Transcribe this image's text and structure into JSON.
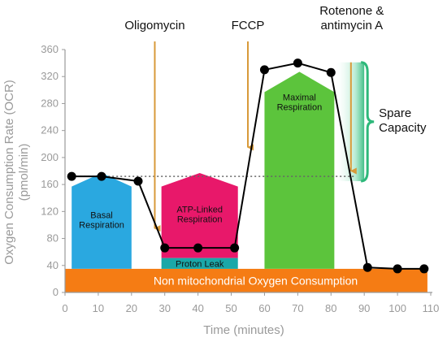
{
  "chart_data": {
    "type": "line",
    "title": "",
    "xlabel": "Time (minutes)",
    "ylabel_lines": [
      "Oxygen Consumption Rate (OCR)",
      "(pmol/min)"
    ],
    "xlim": [
      0,
      110
    ],
    "ylim": [
      0,
      360
    ],
    "x_ticks": [
      0,
      10,
      20,
      30,
      40,
      50,
      60,
      70,
      80,
      90,
      100,
      110
    ],
    "y_ticks": [
      0,
      40,
      80,
      120,
      160,
      200,
      240,
      280,
      320,
      360
    ],
    "series": [
      {
        "x": [
          2,
          11,
          22,
          30,
          40,
          51,
          60,
          70,
          80,
          91,
          100,
          108
        ],
        "y": [
          172,
          172,
          165,
          66,
          66,
          66,
          330,
          340,
          326,
          37,
          35,
          35
        ],
        "color": "#000000"
      }
    ],
    "basal_reference": {
      "y": 172,
      "x_start": 2,
      "x_end": 87,
      "style": "dotted",
      "color": "#666666"
    },
    "injections": [
      {
        "label": "Oligomycin",
        "x": 27,
        "arrow_top": 372,
        "arrow_bottom": 95,
        "color": "#d89a3a"
      },
      {
        "label": "FCCP",
        "x": 55,
        "arrow_top": 372,
        "arrow_bottom": 215,
        "color": "#d89a3a"
      },
      {
        "label_lines": [
          "Rotenone &",
          "antimycin A"
        ],
        "x": 86,
        "arrow_top": 341,
        "arrow_bottom": 180,
        "color": "#d89a3a"
      }
    ],
    "regions": [
      {
        "label": "Non mitochondrial Oxygen Consumption",
        "x_range": [
          0,
          109
        ],
        "y_range": [
          0,
          35
        ],
        "color": "#f57c14",
        "text_color": "#ffffff",
        "shape": "rect"
      },
      {
        "label_lines": [
          "Basal",
          "Respiration"
        ],
        "x_range": [
          2,
          20
        ],
        "y_range": [
          35,
          157
        ],
        "peak_y": 177,
        "color": "#2aa8e0",
        "shape": "house"
      },
      {
        "label_lines": [
          "ATP-Linked",
          "Respiration"
        ],
        "x_range": [
          29,
          52
        ],
        "y_range": [
          51,
          157
        ],
        "peak_y": 177,
        "color": "#e8186a",
        "shape": "house"
      },
      {
        "label": "Proton Leak",
        "x_range": [
          29,
          52
        ],
        "y_range": [
          35,
          51
        ],
        "color": "#1aa8a8",
        "shape": "rect"
      },
      {
        "label_lines": [
          "Maximal",
          "Respiration"
        ],
        "x_range": [
          60,
          81
        ],
        "y_range": [
          35,
          297
        ],
        "peak_y": 327,
        "color": "#5cc43c",
        "shape": "house"
      }
    ],
    "spare_capacity": {
      "label_lines": [
        "Spare",
        "Capacity"
      ],
      "x_range": [
        81,
        90
      ],
      "y_range": [
        165,
        341
      ],
      "color": "#2db87a"
    },
    "grid": false,
    "legend": "none"
  }
}
